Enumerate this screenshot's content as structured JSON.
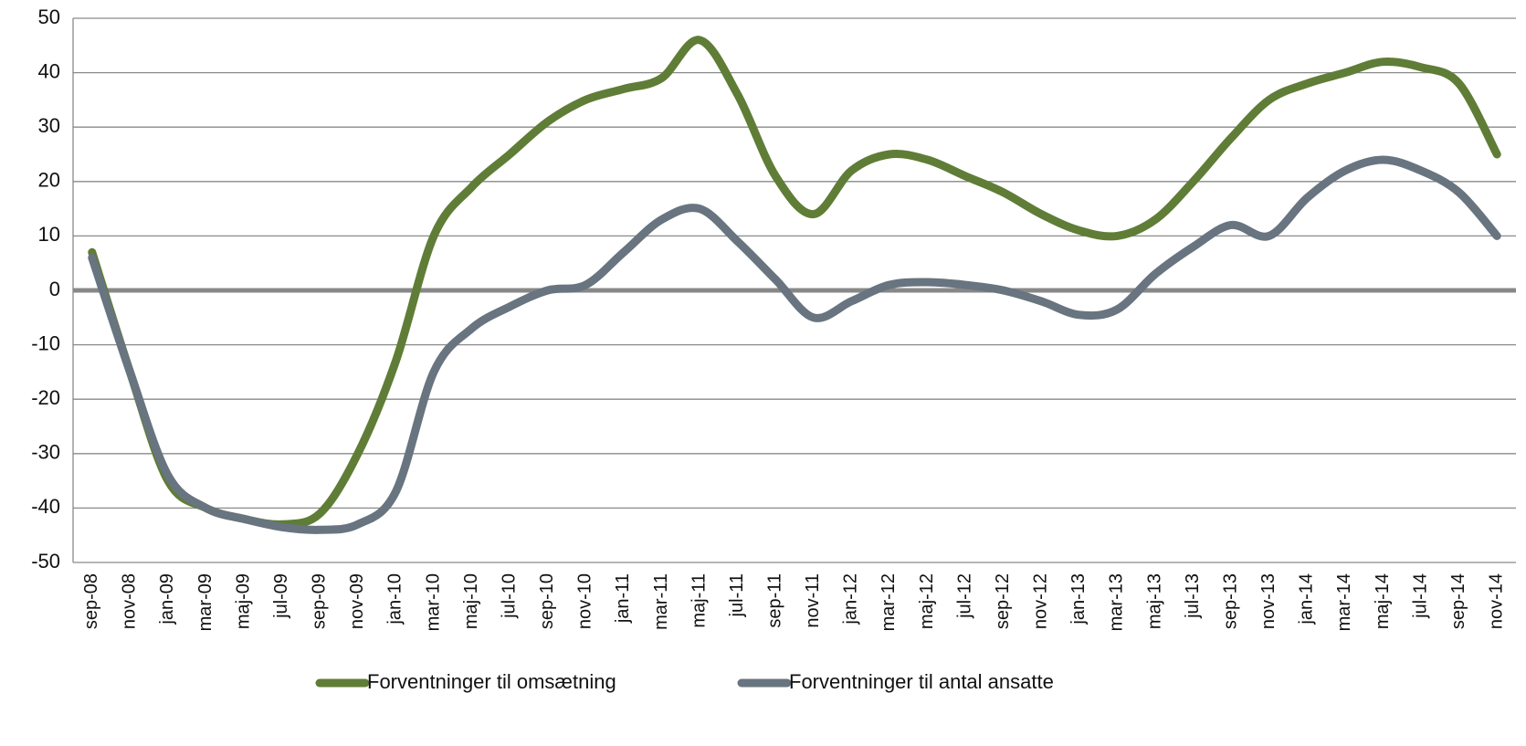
{
  "chart_data": {
    "type": "line",
    "categories": [
      "sep-08",
      "nov-08",
      "jan-09",
      "mar-09",
      "maj-09",
      "jul-09",
      "sep-09",
      "nov-09",
      "jan-10",
      "mar-10",
      "maj-10",
      "jul-10",
      "sep-10",
      "nov-10",
      "jan-11",
      "mar-11",
      "maj-11",
      "jul-11",
      "sep-11",
      "nov-11",
      "jan-12",
      "mar-12",
      "maj-12",
      "jul-12",
      "sep-12",
      "nov-12",
      "jan-13",
      "mar-13",
      "maj-13",
      "jul-13",
      "sep-13",
      "nov-13",
      "jan-14",
      "mar-14",
      "maj-14",
      "jul-14",
      "sep-14",
      "nov-14"
    ],
    "series": [
      {
        "name": "Forventninger til omsætning",
        "color": "#5f7d36",
        "values": [
          7,
          -15,
          -35,
          -40,
          -42,
          -43,
          -41,
          -30,
          -13,
          10,
          19,
          25,
          31,
          35,
          37,
          39,
          46,
          36,
          21,
          14,
          22,
          25,
          24,
          21,
          18,
          14,
          11,
          10,
          13,
          20,
          28,
          35,
          38,
          40,
          42,
          41,
          38,
          25
        ]
      },
      {
        "name": "Forventninger til antal ansatte",
        "color": "#68747f",
        "values": [
          6,
          -15,
          -34,
          -40,
          -42,
          -43.5,
          -44,
          -43,
          -37,
          -15,
          -7,
          -3,
          0,
          1,
          7,
          13,
          15,
          9,
          2,
          -5,
          -2,
          1,
          1.5,
          1,
          0,
          -2,
          -4.5,
          -3.5,
          3,
          8,
          12,
          10,
          17,
          22,
          24,
          22,
          18,
          10
        ]
      }
    ],
    "ylim": [
      -50,
      50
    ],
    "yticks": [
      -50,
      -40,
      -30,
      -20,
      -10,
      0,
      10,
      20,
      30,
      40,
      50
    ],
    "grid": true,
    "legend": "bottom"
  }
}
